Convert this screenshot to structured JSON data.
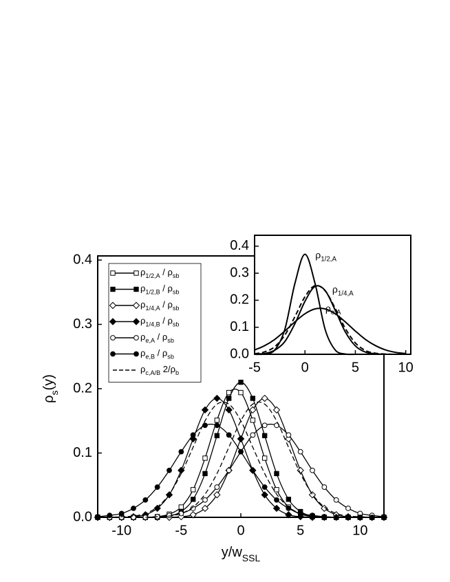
{
  "chart_data": [
    {
      "type": "line",
      "legend": "upper left",
      "x_label": [
        "y/w",
        "SSL"
      ],
      "y_label": [
        "ρ",
        "s",
        "(y)"
      ],
      "xlim": [
        -12,
        12
      ],
      "ylim": [
        0,
        0.4
      ],
      "xticks": [
        -10,
        -5,
        0,
        5,
        10
      ],
      "yticks": [
        {
          "value": 0,
          "label": "0.0"
        },
        {
          "value": 0.1,
          "label": "0.1"
        },
        {
          "value": 0.2,
          "label": "0.2"
        },
        {
          "value": 0.3,
          "label": "0.3"
        },
        {
          "value": 0.4,
          "label": "0.4"
        }
      ],
      "x": [
        -12,
        -11,
        -10,
        -9,
        -8,
        -7,
        -6,
        -5,
        -4,
        -3,
        -2,
        -1,
        0,
        1,
        2,
        3,
        4,
        5,
        6,
        7,
        8,
        9,
        10,
        11,
        12
      ],
      "series": [
        {
          "name": [
            "ρ",
            "1/2,A",
            " / ρ",
            "sb"
          ],
          "color": "#000000",
          "marker": "square",
          "filled": false,
          "values": [
            0,
            0,
            0,
            0,
            0,
            0.001,
            0.005,
            0.016,
            0.043,
            0.092,
            0.151,
            0.194,
            0.194,
            0.151,
            0.092,
            0.043,
            0.016,
            0.005,
            0.001,
            0,
            0,
            0,
            0,
            0,
            0
          ]
        },
        {
          "name": [
            "ρ",
            "1/2,B",
            " / ρ",
            "sb"
          ],
          "color": "#000000",
          "marker": "square",
          "filled": true,
          "values": [
            0,
            0,
            0,
            0,
            0,
            0,
            0.002,
            0.009,
            0.028,
            0.068,
            0.127,
            0.185,
            0.21,
            0.185,
            0.127,
            0.068,
            0.028,
            0.009,
            0.002,
            0,
            0,
            0,
            0,
            0,
            0
          ]
        },
        {
          "name": [
            "ρ",
            "1/4,A",
            " / ρ",
            "sb"
          ],
          "color": "#000000",
          "marker": "diamond",
          "filled": false,
          "values": [
            0,
            0,
            0,
            0,
            0,
            0,
            0,
            0.001,
            0.004,
            0.014,
            0.035,
            0.073,
            0.122,
            0.167,
            0.185,
            0.167,
            0.122,
            0.073,
            0.035,
            0.014,
            0.004,
            0.001,
            0,
            0,
            0
          ]
        },
        {
          "name": [
            "ρ",
            "1/4,B",
            " / ρ",
            "sb"
          ],
          "color": "#000000",
          "marker": "diamond",
          "filled": true,
          "values": [
            0,
            0,
            0,
            0.001,
            0.004,
            0.014,
            0.035,
            0.073,
            0.122,
            0.167,
            0.185,
            0.167,
            0.122,
            0.073,
            0.035,
            0.014,
            0.004,
            0.001,
            0,
            0,
            0,
            0,
            0,
            0,
            0
          ]
        },
        {
          "name": [
            "ρ",
            "e,A",
            "   / ρ",
            "sb"
          ],
          "color": "#000000",
          "marker": "circle",
          "filled": false,
          "values": [
            0,
            0,
            0,
            0,
            0,
            0.001,
            0.003,
            0.006,
            0.014,
            0.027,
            0.047,
            0.073,
            0.102,
            0.128,
            0.143,
            0.143,
            0.128,
            0.102,
            0.073,
            0.047,
            0.027,
            0.014,
            0.006,
            0.003,
            0.001
          ]
        },
        {
          "name": [
            "ρ",
            "e,B",
            "   / ρ",
            "sb"
          ],
          "color": "#000000",
          "marker": "circle",
          "filled": true,
          "values": [
            0.001,
            0.003,
            0.006,
            0.014,
            0.027,
            0.047,
            0.073,
            0.102,
            0.128,
            0.143,
            0.143,
            0.128,
            0.102,
            0.073,
            0.047,
            0.027,
            0.014,
            0.006,
            0.003,
            0.001,
            0,
            0,
            0,
            0,
            0
          ]
        },
        {
          "name": [
            "ρ",
            "c,A/B",
            " 2/ρ",
            "b"
          ],
          "color": "#000000",
          "dashed": true,
          "x": [
            -12,
            -11,
            -10,
            -9,
            -8,
            -7,
            -6,
            -5,
            -4,
            -3,
            -2,
            -1,
            0,
            1,
            2,
            3,
            4,
            5,
            6,
            7,
            8,
            null,
            -8,
            -7,
            -6,
            -5,
            -4,
            -3,
            -2,
            -1,
            0,
            1,
            2,
            3,
            4,
            5,
            6,
            7,
            8,
            9,
            10,
            11,
            12
          ],
          "values": [
            0,
            0,
            0.001,
            0.002,
            0.006,
            0.016,
            0.036,
            0.068,
            0.109,
            0.15,
            0.176,
            0.176,
            0.15,
            0.109,
            0.068,
            0.036,
            0.016,
            0.006,
            0.002,
            0.001,
            0,
            null,
            0,
            0.001,
            0.002,
            0.006,
            0.016,
            0.036,
            0.068,
            0.109,
            0.15,
            0.176,
            0.176,
            0.15,
            0.109,
            0.068,
            0.036,
            0.016,
            0.006,
            0.002,
            0.001,
            0,
            0
          ]
        }
      ]
    },
    {
      "type": "line",
      "xlim": [
        -5,
        10.5
      ],
      "ylim": [
        0,
        0.42
      ],
      "xticks": [
        -5,
        0,
        5,
        10
      ],
      "yticks": [
        {
          "value": 0,
          "label": "0.0"
        },
        {
          "value": 0.1,
          "label": "0.1"
        },
        {
          "value": 0.2,
          "label": "0.2"
        },
        {
          "value": 0.3,
          "label": "0.3"
        },
        {
          "value": 0.4,
          "label": "0.4"
        }
      ],
      "x": [
        -5,
        -4,
        -3,
        -2,
        -1,
        0,
        1,
        2,
        3,
        4,
        5,
        6,
        7,
        8,
        9,
        10
      ],
      "series": [
        {
          "label": [
            "ρ",
            "1/2,A"
          ],
          "color": "#000000",
          "values": [
            0,
            0.001,
            0.016,
            0.092,
            0.262,
            0.37,
            0.262,
            0.092,
            0.016,
            0.001,
            0,
            0,
            0,
            0,
            0,
            0
          ]
        },
        {
          "label": [
            "ρ",
            "1/4,A"
          ],
          "color": "#000000",
          "values": [
            0.001,
            0.003,
            0.015,
            0.047,
            0.113,
            0.196,
            0.251,
            0.236,
            0.163,
            0.083,
            0.031,
            0.008,
            0.002,
            0,
            0,
            0
          ]
        },
        {
          "color": "#000000",
          "dashed": true,
          "values": [
            0.002,
            0.009,
            0.028,
            0.071,
            0.139,
            0.213,
            0.254,
            0.235,
            0.17,
            0.096,
            0.042,
            0.014,
            0.004,
            0.001,
            0,
            0
          ]
        },
        {
          "label": [
            "ρ",
            "e,A"
          ],
          "color": "#000000",
          "values": [
            0.016,
            0.032,
            0.055,
            0.086,
            0.12,
            0.15,
            0.168,
            0.168,
            0.15,
            0.12,
            0.086,
            0.055,
            0.032,
            0.016,
            0.007,
            0.003
          ]
        }
      ]
    }
  ]
}
